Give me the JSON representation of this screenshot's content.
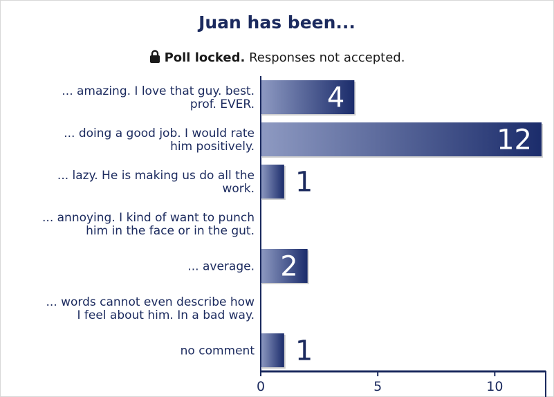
{
  "poll": {
    "title": "Juan has been...",
    "status_strong": "Poll locked.",
    "status_text": " Responses not accepted."
  },
  "chart_data": {
    "type": "bar",
    "orientation": "horizontal",
    "title": "Juan has been...",
    "categories": [
      [
        "... amazing. I love that guy. best.",
        "prof. EVER."
      ],
      [
        "... doing a good job. I would rate",
        "him positively."
      ],
      [
        "... lazy. He is making us do all the",
        "work."
      ],
      [
        "... annoying. I kind of want to punch",
        "him in the face or in the gut."
      ],
      [
        "... average."
      ],
      [
        "... words cannot even describe how",
        "I feel about him. In a bad way."
      ],
      [
        "no comment"
      ]
    ],
    "values": [
      4,
      12,
      1,
      0,
      2,
      0,
      1
    ],
    "xlim": [
      0,
      12
    ],
    "xticks": [
      "0",
      "5",
      "10"
    ],
    "xtick_values": [
      0,
      5,
      10
    ],
    "bar_color_dark": "#1b2c6b",
    "bar_color_light": "#8e9ac2",
    "axis_color": "#1b2a5e"
  }
}
